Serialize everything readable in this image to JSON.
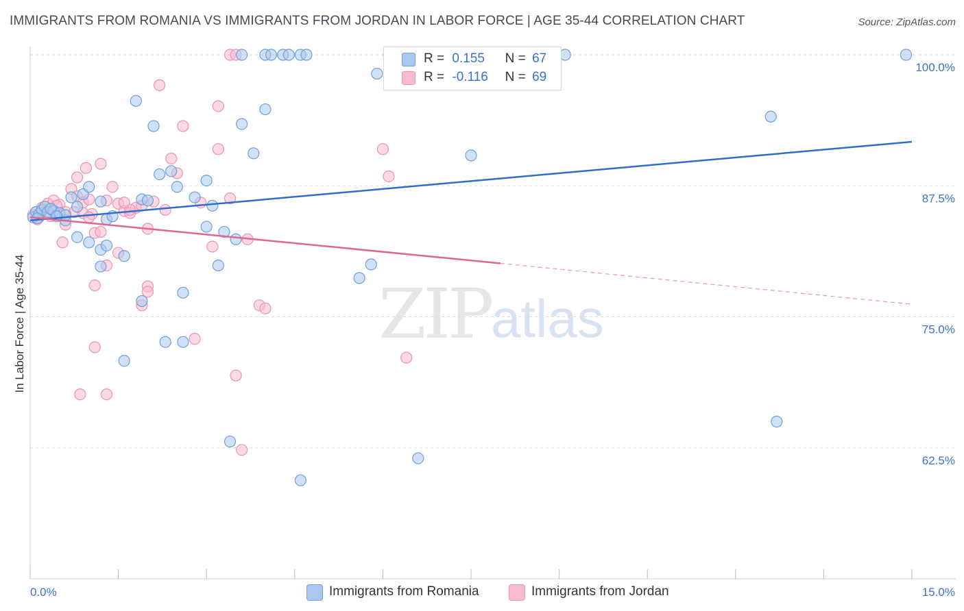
{
  "title": "IMMIGRANTS FROM ROMANIA VS IMMIGRANTS FROM JORDAN IN LABOR FORCE | AGE 35-44 CORRELATION CHART",
  "source": "Source: ZipAtlas.com",
  "watermark": {
    "zip": "ZIP",
    "atlas": "atlas"
  },
  "legend": {
    "r_label": "R =",
    "n_label": "N =",
    "romania": {
      "r": "0.155",
      "n": "67"
    },
    "jordan": {
      "r": "-0.116",
      "n": "69"
    }
  },
  "colors": {
    "romania_fill": "#a9c8ef",
    "romania_stroke": "#6f9fd9",
    "romania_line": "#2f6ecb",
    "jordan_fill": "#f7bcd0",
    "jordan_stroke": "#ea93b2",
    "jordan_line": "#e06593",
    "grid": "#d8dbe0",
    "tick_label": "#3b72c8"
  },
  "chart_data": {
    "type": "scatter",
    "title": "IMMIGRANTS FROM ROMANIA VS IMMIGRANTS FROM JORDAN IN LABOR FORCE | AGE 35-44 CORRELATION CHART",
    "xlabel": "",
    "ylabel": "In Labor Force | Age 35-44",
    "xlim": [
      0,
      15
    ],
    "ylim": [
      50,
      100
    ],
    "x_tick_labels": [
      "0.0%",
      "15.0%"
    ],
    "y_ticks": [
      62.5,
      75.0,
      87.5,
      100.0
    ],
    "y_tick_labels": [
      "62.5%",
      "75.0%",
      "87.5%",
      "100.0%"
    ],
    "grid": "horizontal dashed",
    "legend_position": "top-center",
    "series": [
      {
        "name": "Immigrants from Romania",
        "points": [
          [
            0.05,
            84.5
          ],
          [
            0.1,
            85.0
          ],
          [
            0.15,
            84.8
          ],
          [
            0.2,
            85.2
          ],
          [
            0.25,
            85.5
          ],
          [
            0.3,
            85.0
          ],
          [
            0.4,
            85.1
          ],
          [
            0.5,
            84.9
          ],
          [
            0.6,
            84.2
          ],
          [
            0.7,
            86.4
          ],
          [
            0.8,
            85.5
          ],
          [
            0.9,
            86.7
          ],
          [
            1.0,
            87.4
          ],
          [
            1.2,
            86.0
          ],
          [
            1.3,
            84.3
          ],
          [
            1.4,
            84.6
          ],
          [
            0.8,
            82.6
          ],
          [
            1.0,
            82.1
          ],
          [
            1.2,
            81.4
          ],
          [
            1.3,
            81.8
          ],
          [
            1.6,
            80.8
          ],
          [
            1.2,
            79.8
          ],
          [
            1.9,
            86.2
          ],
          [
            2.0,
            86.1
          ],
          [
            2.2,
            88.6
          ],
          [
            2.5,
            87.4
          ],
          [
            2.4,
            88.9
          ],
          [
            2.8,
            86.4
          ],
          [
            3.0,
            83.6
          ],
          [
            3.3,
            83.1
          ],
          [
            3.5,
            82.4
          ],
          [
            3.2,
            79.9
          ],
          [
            2.6,
            77.3
          ],
          [
            1.9,
            76.5
          ],
          [
            2.3,
            72.6
          ],
          [
            2.6,
            72.6
          ],
          [
            1.6,
            70.8
          ],
          [
            3.0,
            88.0
          ],
          [
            3.1,
            85.6
          ],
          [
            3.6,
            93.4
          ],
          [
            3.8,
            90.6
          ],
          [
            4.0,
            94.8
          ],
          [
            2.1,
            93.2
          ],
          [
            1.8,
            95.6
          ],
          [
            5.6,
            78.7
          ],
          [
            5.8,
            80.0
          ],
          [
            3.4,
            63.1
          ],
          [
            7.5,
            90.4
          ],
          [
            4.6,
            59.4
          ],
          [
            5.9,
            98.2
          ],
          [
            3.6,
            100
          ],
          [
            4.0,
            100
          ],
          [
            4.1,
            100
          ],
          [
            4.3,
            100
          ],
          [
            4.4,
            100
          ],
          [
            4.6,
            100
          ],
          [
            4.7,
            100
          ],
          [
            6.1,
            100
          ],
          [
            9.1,
            100
          ],
          [
            12.6,
            94.1
          ],
          [
            12.7,
            65.0
          ],
          [
            14.9,
            100
          ],
          [
            6.6,
            61.5
          ],
          [
            0.6,
            84.7
          ],
          [
            0.35,
            85.3
          ],
          [
            0.45,
            84.6
          ],
          [
            0.12,
            84.4
          ]
        ]
      },
      {
        "name": "Immigrants from Jordan",
        "points": [
          [
            0.05,
            84.7
          ],
          [
            0.1,
            85.0
          ],
          [
            0.15,
            84.5
          ],
          [
            0.2,
            85.4
          ],
          [
            0.3,
            85.8
          ],
          [
            0.4,
            86.1
          ],
          [
            0.5,
            85.7
          ],
          [
            0.6,
            85.0
          ],
          [
            0.7,
            87.2
          ],
          [
            0.8,
            86.5
          ],
          [
            0.9,
            85.9
          ],
          [
            1.0,
            86.2
          ],
          [
            1.1,
            83.0
          ],
          [
            1.3,
            86.1
          ],
          [
            1.4,
            87.4
          ],
          [
            1.5,
            85.8
          ],
          [
            1.6,
            85.1
          ],
          [
            1.7,
            84.9
          ],
          [
            1.8,
            85.4
          ],
          [
            1.9,
            85.6
          ],
          [
            2.0,
            83.4
          ],
          [
            2.1,
            86.0
          ],
          [
            0.8,
            88.3
          ],
          [
            0.95,
            89.2
          ],
          [
            1.2,
            89.6
          ],
          [
            2.4,
            90.1
          ],
          [
            2.5,
            88.7
          ],
          [
            3.2,
            91.0
          ],
          [
            3.2,
            95.1
          ],
          [
            2.6,
            93.2
          ],
          [
            2.2,
            97.1
          ],
          [
            3.4,
            86.3
          ],
          [
            3.1,
            81.7
          ],
          [
            3.7,
            82.4
          ],
          [
            2.0,
            77.9
          ],
          [
            2.0,
            77.4
          ],
          [
            1.9,
            76.1
          ],
          [
            1.1,
            78.0
          ],
          [
            1.3,
            79.9
          ],
          [
            3.9,
            76.1
          ],
          [
            4.0,
            75.8
          ],
          [
            2.8,
            72.9
          ],
          [
            1.1,
            72.1
          ],
          [
            3.5,
            69.4
          ],
          [
            0.85,
            67.6
          ],
          [
            1.3,
            67.6
          ],
          [
            3.6,
            62.3
          ],
          [
            6.1,
            88.4
          ],
          [
            6.0,
            91.0
          ],
          [
            6.4,
            71.1
          ],
          [
            3.4,
            100
          ],
          [
            3.5,
            100
          ],
          [
            0.55,
            82.1
          ],
          [
            0.6,
            83.8
          ],
          [
            0.75,
            85.0
          ],
          [
            0.9,
            84.9
          ],
          [
            1.05,
            84.8
          ],
          [
            1.2,
            83.1
          ],
          [
            1.5,
            81.1
          ],
          [
            1.7,
            85.2
          ],
          [
            2.9,
            85.9
          ],
          [
            0.25,
            85.0
          ],
          [
            0.35,
            84.6
          ],
          [
            0.45,
            85.6
          ],
          [
            0.12,
            84.3
          ],
          [
            0.18,
            84.9
          ],
          [
            1.0,
            84.5
          ],
          [
            1.6,
            85.9
          ],
          [
            2.3,
            85.2
          ]
        ]
      }
    ],
    "trend_lines": [
      {
        "series": "Immigrants from Romania",
        "from": [
          0,
          84.2
        ],
        "to": [
          15,
          91.7
        ],
        "style": "solid"
      },
      {
        "series": "Immigrants from Jordan",
        "from": [
          0,
          84.5
        ],
        "to": [
          8,
          80.1
        ],
        "style": "solid",
        "extends_to": [
          15,
          76.2
        ],
        "extension_style": "dashed"
      }
    ]
  },
  "bottom_legend": {
    "romania": "Immigrants from Romania",
    "jordan": "Immigrants from Jordan"
  }
}
